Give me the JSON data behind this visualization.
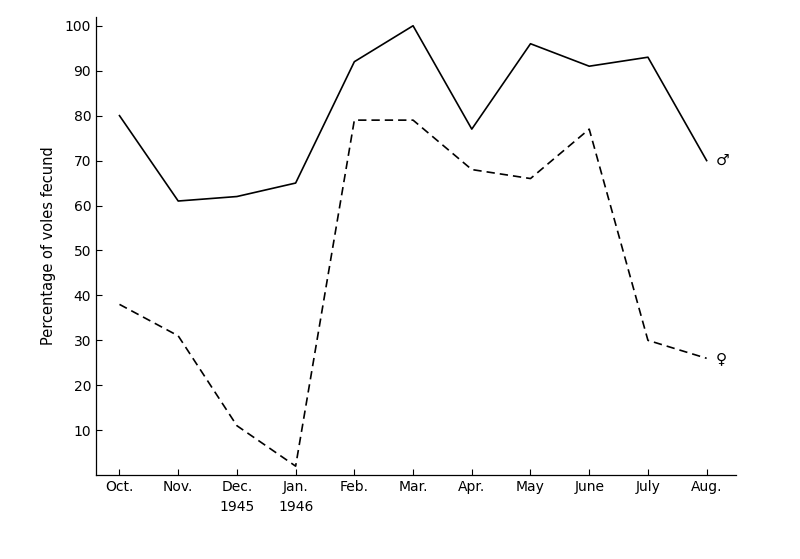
{
  "x_labels": [
    "Oct.",
    "Nov.",
    "Dec.",
    "Jan.",
    "Feb.",
    "Mar.",
    "Apr.",
    "May",
    "June",
    "July",
    "Aug."
  ],
  "male_values": [
    80,
    61,
    62,
    65,
    92,
    100,
    77,
    96,
    91,
    93,
    70
  ],
  "female_values": [
    38,
    31,
    11,
    2,
    79,
    79,
    68,
    66,
    77,
    30,
    26
  ],
  "ylabel": "Percentage of voles fecund",
  "ylim": [
    0,
    102
  ],
  "yticks": [
    10,
    20,
    30,
    40,
    50,
    60,
    70,
    80,
    90,
    100
  ],
  "line_color": "#000000",
  "background_color": "#ffffff",
  "male_symbol": "♂",
  "female_symbol": "♀",
  "year_1945_idx": 2,
  "year_1946_idx": 3
}
